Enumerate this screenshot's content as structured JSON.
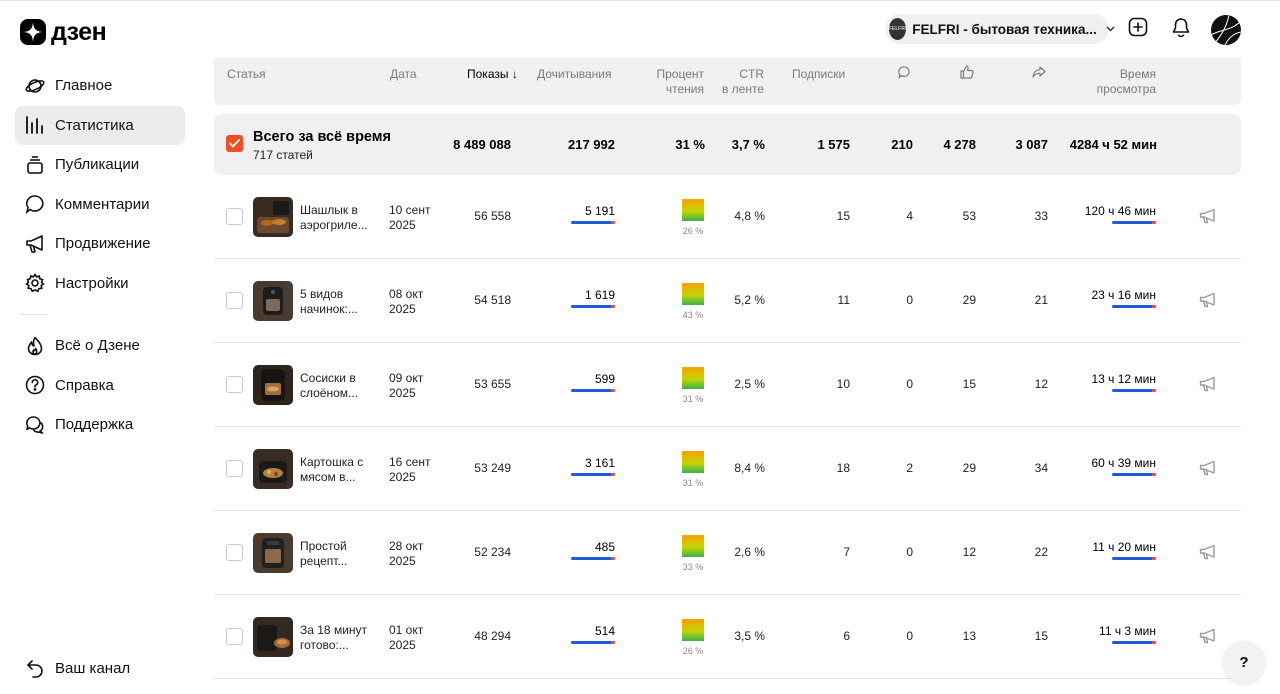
{
  "brand": {
    "logo_text": "дзен"
  },
  "sidebar": {
    "items": [
      {
        "label": "Главное",
        "icon": "planet-icon"
      },
      {
        "label": "Статистика",
        "icon": "chart-bars-icon",
        "active": true
      },
      {
        "label": "Публикации",
        "icon": "stack-icon"
      },
      {
        "label": "Комментарии",
        "icon": "comment-icon"
      },
      {
        "label": "Продвижение",
        "icon": "megaphone-icon"
      },
      {
        "label": "Настройки",
        "icon": "gear-icon"
      }
    ],
    "secondary": [
      {
        "label": "Всё о Дзене",
        "icon": "flame-icon"
      },
      {
        "label": "Справка",
        "icon": "question-circle-icon"
      },
      {
        "label": "Поддержка",
        "icon": "chat-bubbles-icon"
      }
    ],
    "bottom": {
      "label": "Ваш канал",
      "icon": "back-arrow-icon"
    }
  },
  "header": {
    "channel_name": "FELFRI - бытовая техника...",
    "channel_avatar_text": "FELFRI"
  },
  "table": {
    "headers": {
      "article": "Статья",
      "date": "Дата",
      "shows": "Показы",
      "reads": "Дочитывания",
      "percent": [
        "Процент",
        "чтения"
      ],
      "ctr": [
        "CTR",
        "в ленте"
      ],
      "subs": "Подписки",
      "time": [
        "Время",
        "просмотра"
      ]
    },
    "total": {
      "title": "Всего за всё время",
      "subtitle": "717 статей",
      "shows": "8 489 088",
      "reads": "217 992",
      "percent": "31 %",
      "ctr": "3,7 %",
      "subs": "1 575",
      "comments": "210",
      "likes": "4 278",
      "shares": "3 087",
      "time": "4284 ч 52 мин"
    },
    "rows": [
      {
        "title": [
          "Шашлык в",
          "аэрогриле..."
        ],
        "date": [
          "10 сент",
          "2025"
        ],
        "shows": "56 558",
        "reads": "5 191",
        "percent": "26 %",
        "ctr": "4,8 %",
        "subs": "15",
        "comments": "4",
        "likes": "53",
        "shares": "33",
        "time": "120 ч 46 мин"
      },
      {
        "title": [
          "5 видов",
          "начинок:..."
        ],
        "date": [
          "08 окт",
          "2025"
        ],
        "shows": "54 518",
        "reads": "1 619",
        "percent": "43 %",
        "ctr": "5,2 %",
        "subs": "11",
        "comments": "0",
        "likes": "29",
        "shares": "21",
        "time": "23 ч 16 мин"
      },
      {
        "title": [
          "Сосиски в",
          "слоёном..."
        ],
        "date": [
          "09 окт",
          "2025"
        ],
        "shows": "53 655",
        "reads": "599",
        "percent": "31 %",
        "ctr": "2,5 %",
        "subs": "10",
        "comments": "0",
        "likes": "15",
        "shares": "12",
        "time": "13 ч 12 мин"
      },
      {
        "title": [
          "Картошка с",
          "мясом в..."
        ],
        "date": [
          "16 сент",
          "2025"
        ],
        "shows": "53 249",
        "reads": "3 161",
        "percent": "31 %",
        "ctr": "8,4 %",
        "subs": "18",
        "comments": "2",
        "likes": "29",
        "shares": "34",
        "time": "60 ч 39 мин"
      },
      {
        "title": [
          "Простой",
          "рецепт..."
        ],
        "date": [
          "28 окт",
          "2025"
        ],
        "shows": "52 234",
        "reads": "485",
        "percent": "33 %",
        "ctr": "2,6 %",
        "subs": "7",
        "comments": "0",
        "likes": "12",
        "shares": "22",
        "time": "11 ч 20 мин"
      },
      {
        "title": [
          "За 18 минут",
          "готово:..."
        ],
        "date": [
          "01 окт",
          "2025"
        ],
        "shows": "48 294",
        "reads": "514",
        "percent": "26 %",
        "ctr": "3,5 %",
        "subs": "6",
        "comments": "0",
        "likes": "13",
        "shares": "15",
        "time": "11 ч 3 мин"
      }
    ]
  },
  "help_label": "?",
  "colors": {
    "accent": "#f04e23",
    "bar_blue": "#1e5bd6",
    "row_bg": "#f0f0f0"
  }
}
